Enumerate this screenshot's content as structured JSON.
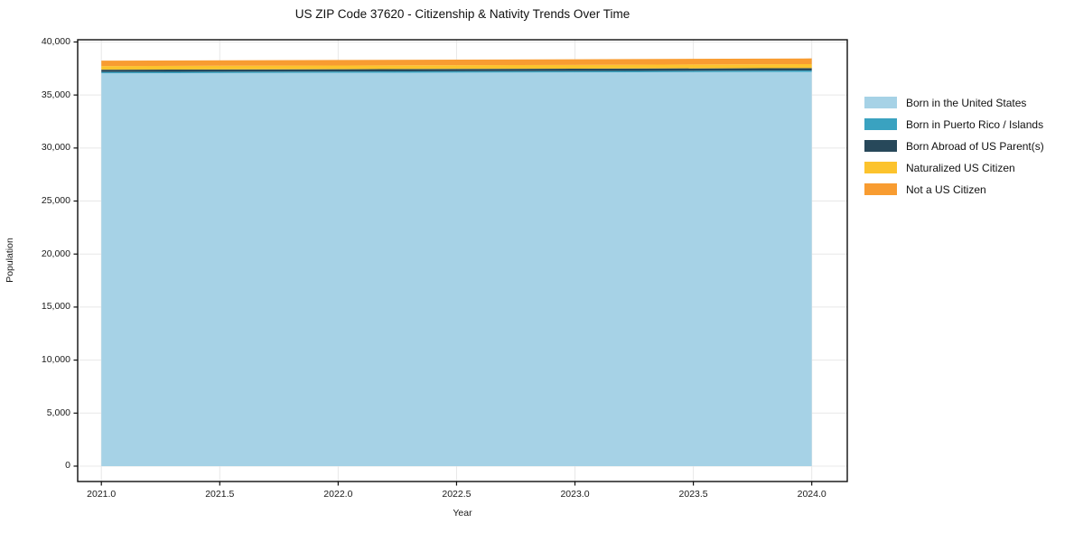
{
  "figure": {
    "title": "US ZIP Code 37620 - Citizenship & Nativity Trends Over Time"
  },
  "chart_data": {
    "type": "area",
    "stacked": true,
    "title": "US ZIP Code 37620 - Citizenship & Nativity Trends Over Time",
    "xlabel": "Year",
    "ylabel": "Population",
    "x": [
      2021,
      2022,
      2023,
      2024
    ],
    "series": [
      {
        "name": "Born in the United States",
        "color": "#a6d2e6",
        "values": [
          37050,
          37090,
          37130,
          37180
        ]
      },
      {
        "name": "Born in Puerto Rico / Islands",
        "color": "#3aa2c0",
        "values": [
          120,
          125,
          130,
          135
        ]
      },
      {
        "name": "Born Abroad of US Parent(s)",
        "color": "#27485a",
        "values": [
          215,
          218,
          222,
          226
        ]
      },
      {
        "name": "Naturalized US Citizen",
        "color": "#fcc32d",
        "values": [
          345,
          352,
          358,
          368
        ]
      },
      {
        "name": "Not a US Citizen",
        "color": "#f89c31",
        "values": [
          510,
          515,
          525,
          540
        ]
      }
    ],
    "xlim": [
      2020.9,
      2024.15
    ],
    "ylim": [
      -1450,
      40210
    ],
    "xticks": [
      2021.0,
      2021.5,
      2022.0,
      2022.5,
      2023.0,
      2023.5,
      2024.0
    ],
    "xtick_labels": [
      "2021.0",
      "2021.5",
      "2022.0",
      "2022.5",
      "2023.0",
      "2023.5",
      "2024.0"
    ],
    "yticks": [
      0,
      5000,
      10000,
      15000,
      20000,
      25000,
      30000,
      35000,
      40000
    ],
    "ytick_labels": [
      "0",
      "5,000",
      "10,000",
      "15,000",
      "20,000",
      "25,000",
      "30,000",
      "35,000",
      "40,000"
    ],
    "grid": true,
    "grid_color": "#e8e8e8",
    "spine_color": "#0d0d0d",
    "text_color": "#1a1a1a",
    "background": "#ffffff",
    "legend_position": "right-outside"
  }
}
